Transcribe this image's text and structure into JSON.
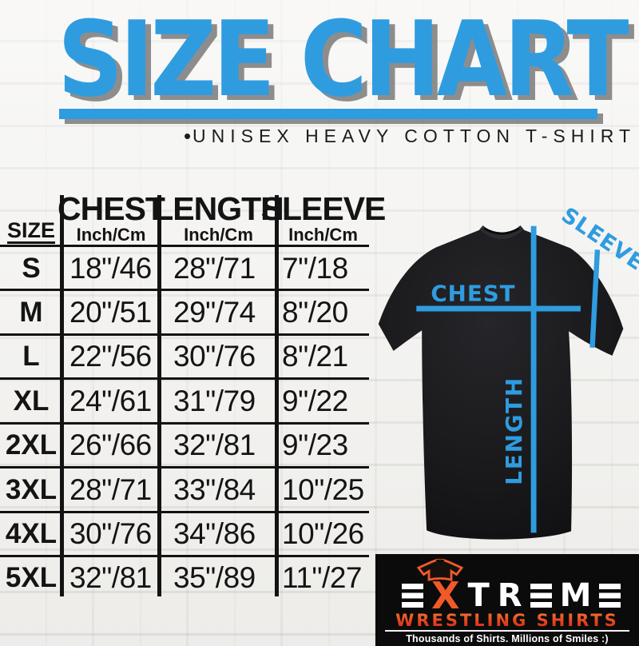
{
  "page": {
    "title": "SIZE CHART",
    "subtitle_bullet": "•",
    "subtitle": "UNISEX HEAVY COTTON T-SHIRT"
  },
  "size_table": {
    "columns": [
      {
        "label": "SIZE",
        "sub": ""
      },
      {
        "label": "CHEST",
        "sub": "Inch/Cm"
      },
      {
        "label": "LENGTH",
        "sub": "Inch/Cm"
      },
      {
        "label": "SLEEVE",
        "sub": "Inch/Cm"
      }
    ],
    "rows": [
      {
        "size": "S",
        "chest": "18\"/46",
        "length": "28\"/71",
        "sleeve": "7\"/18"
      },
      {
        "size": "M",
        "chest": "20\"/51",
        "length": "29\"/74",
        "sleeve": "8\"/20"
      },
      {
        "size": "L",
        "chest": "22\"/56",
        "length": "30\"/76",
        "sleeve": "8\"/21"
      },
      {
        "size": "XL",
        "chest": "24\"/61",
        "length": "31\"/79",
        "sleeve": "9\"/22"
      },
      {
        "size": "2XL",
        "chest": "26\"/66",
        "length": "32\"/81",
        "sleeve": "9\"/23"
      },
      {
        "size": "3XL",
        "chest": "28\"/71",
        "length": "33\"/84",
        "sleeve": "10\"/25"
      },
      {
        "size": "4XL",
        "chest": "30\"/76",
        "length": "34\"/86",
        "sleeve": "10\"/26"
      },
      {
        "size": "5XL",
        "chest": "32\"/81",
        "length": "35\"/89",
        "sleeve": "11\"/27"
      }
    ]
  },
  "diagram": {
    "chest_label": "CHEST",
    "length_label": "LENGTH",
    "sleeve_label": "SLEEVE"
  },
  "brand": {
    "wordmark": "EXTREME",
    "accent_letter": "X",
    "line": "WRESTLING SHIRTS",
    "tagline": "Thousands of Shirts. Millions of Smiles :)"
  },
  "colors": {
    "accent_blue": "#2F9CE0",
    "brand_orange": "#F05A28",
    "brand_red": "#C62A12",
    "logo_box": "#0B0B0B",
    "table_ink": "#131313",
    "title_shadow": "#7A7A7A"
  },
  "chart_data": {
    "type": "table",
    "title": "SIZE CHART",
    "subtitle": "UNISEX HEAVY COTTON T-SHIRT",
    "columns": [
      "SIZE",
      "CHEST Inch/Cm",
      "LENGTH Inch/Cm",
      "SLEEVE Inch/Cm"
    ],
    "rows": [
      [
        "S",
        "18\"/46",
        "28\"/71",
        "7\"/18"
      ],
      [
        "M",
        "20\"/51",
        "29\"/74",
        "8\"/20"
      ],
      [
        "L",
        "22\"/56",
        "30\"/76",
        "8\"/21"
      ],
      [
        "XL",
        "24\"/61",
        "31\"/79",
        "9\"/22"
      ],
      [
        "2XL",
        "26\"/66",
        "32\"/81",
        "9\"/23"
      ],
      [
        "3XL",
        "28\"/71",
        "33\"/84",
        "10\"/25"
      ],
      [
        "4XL",
        "30\"/76",
        "34\"/86",
        "10\"/26"
      ],
      [
        "5XL",
        "32\"/81",
        "35\"/89",
        "11\"/27"
      ]
    ]
  }
}
